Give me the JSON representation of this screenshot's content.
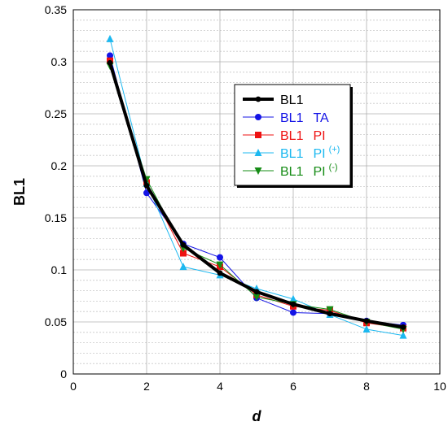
{
  "chart_data": {
    "type": "line",
    "xlabel": "d",
    "ylabel": "BL1",
    "xlim": [
      0,
      10
    ],
    "ylim": [
      0,
      0.35
    ],
    "x_ticks": [
      0,
      2,
      4,
      6,
      8,
      10
    ],
    "y_ticks": [
      0,
      0.05,
      0.1,
      0.15,
      0.2,
      0.25,
      0.3,
      0.35
    ],
    "y_tick_labels": [
      "0",
      "0.05",
      "0.1",
      "0.15",
      "0.2",
      "0.25",
      "0.3",
      "0.35"
    ],
    "grid": true,
    "minor_grid_y_step": 0.01,
    "legend_position": "upper-right",
    "x": [
      1,
      2,
      3,
      4,
      5,
      6,
      7,
      8,
      9
    ],
    "series": [
      {
        "name": "BL1",
        "label_suffix": "",
        "superscript": "",
        "color": "#000000",
        "marker": "circle",
        "width": 4.0,
        "values": [
          0.299,
          0.181,
          0.124,
          0.097,
          0.079,
          0.067,
          0.058,
          0.051,
          0.045
        ]
      },
      {
        "name": "BL1",
        "label_suffix": "TA",
        "superscript": "",
        "color": "#1414e6",
        "marker": "circle",
        "width": 1.0,
        "values": [
          0.306,
          0.174,
          0.125,
          0.112,
          0.073,
          0.059,
          0.058,
          0.051,
          0.047
        ]
      },
      {
        "name": "BL1",
        "label_suffix": "PI",
        "superscript": "",
        "color": "#ee1111",
        "marker": "square",
        "width": 1.0,
        "values": [
          0.301,
          0.184,
          0.116,
          0.103,
          0.076,
          0.065,
          0.061,
          0.049,
          0.044
        ]
      },
      {
        "name": "BL1",
        "label_suffix": "PI",
        "superscript": "(+)",
        "color": "#1cb8f0",
        "marker": "triangle-up",
        "width": 1.0,
        "values": [
          0.322,
          0.183,
          0.103,
          0.095,
          0.082,
          0.072,
          0.057,
          0.043,
          0.037
        ]
      },
      {
        "name": "BL1",
        "label_suffix": "PI",
        "superscript": "(-)",
        "color": "#168c16",
        "marker": "triangle-down",
        "width": 1.0,
        "values": [
          0.296,
          0.187,
          0.121,
          0.105,
          0.074,
          0.067,
          0.062,
          0.05,
          0.043
        ]
      }
    ]
  }
}
